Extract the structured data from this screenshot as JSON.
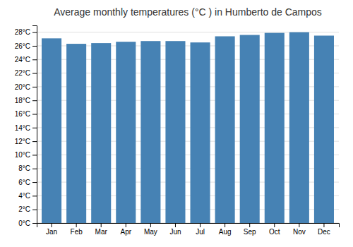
{
  "chart_data": {
    "type": "bar",
    "title": "Average monthly temperatures (°C ) in Humberto de Campos",
    "categories": [
      "Jan",
      "Feb",
      "Mar",
      "Apr",
      "May",
      "Jun",
      "Jul",
      "Aug",
      "Sep",
      "Oct",
      "Nov",
      "Dec"
    ],
    "values": [
      27.1,
      26.3,
      26.4,
      26.6,
      26.7,
      26.7,
      26.5,
      27.4,
      27.6,
      27.9,
      28.0,
      27.5
    ],
    "ylim": [
      0,
      29
    ],
    "yticks": [
      {
        "value": 0,
        "label": "0°C"
      },
      {
        "value": 2,
        "label": "2°C"
      },
      {
        "value": 4,
        "label": "4°C"
      },
      {
        "value": 6,
        "label": "6°C"
      },
      {
        "value": 8,
        "label": "8°C"
      },
      {
        "value": 10,
        "label": "10°C"
      },
      {
        "value": 12,
        "label": "12°C"
      },
      {
        "value": 14,
        "label": "14°C"
      },
      {
        "value": 16,
        "label": "16°C"
      },
      {
        "value": 18,
        "label": "18°C"
      },
      {
        "value": 20,
        "label": "20°C"
      },
      {
        "value": 22,
        "label": "22°C"
      },
      {
        "value": 24,
        "label": "24°C"
      },
      {
        "value": 26,
        "label": "26°C"
      },
      {
        "value": 28,
        "label": "28°C"
      }
    ],
    "grid": true
  }
}
